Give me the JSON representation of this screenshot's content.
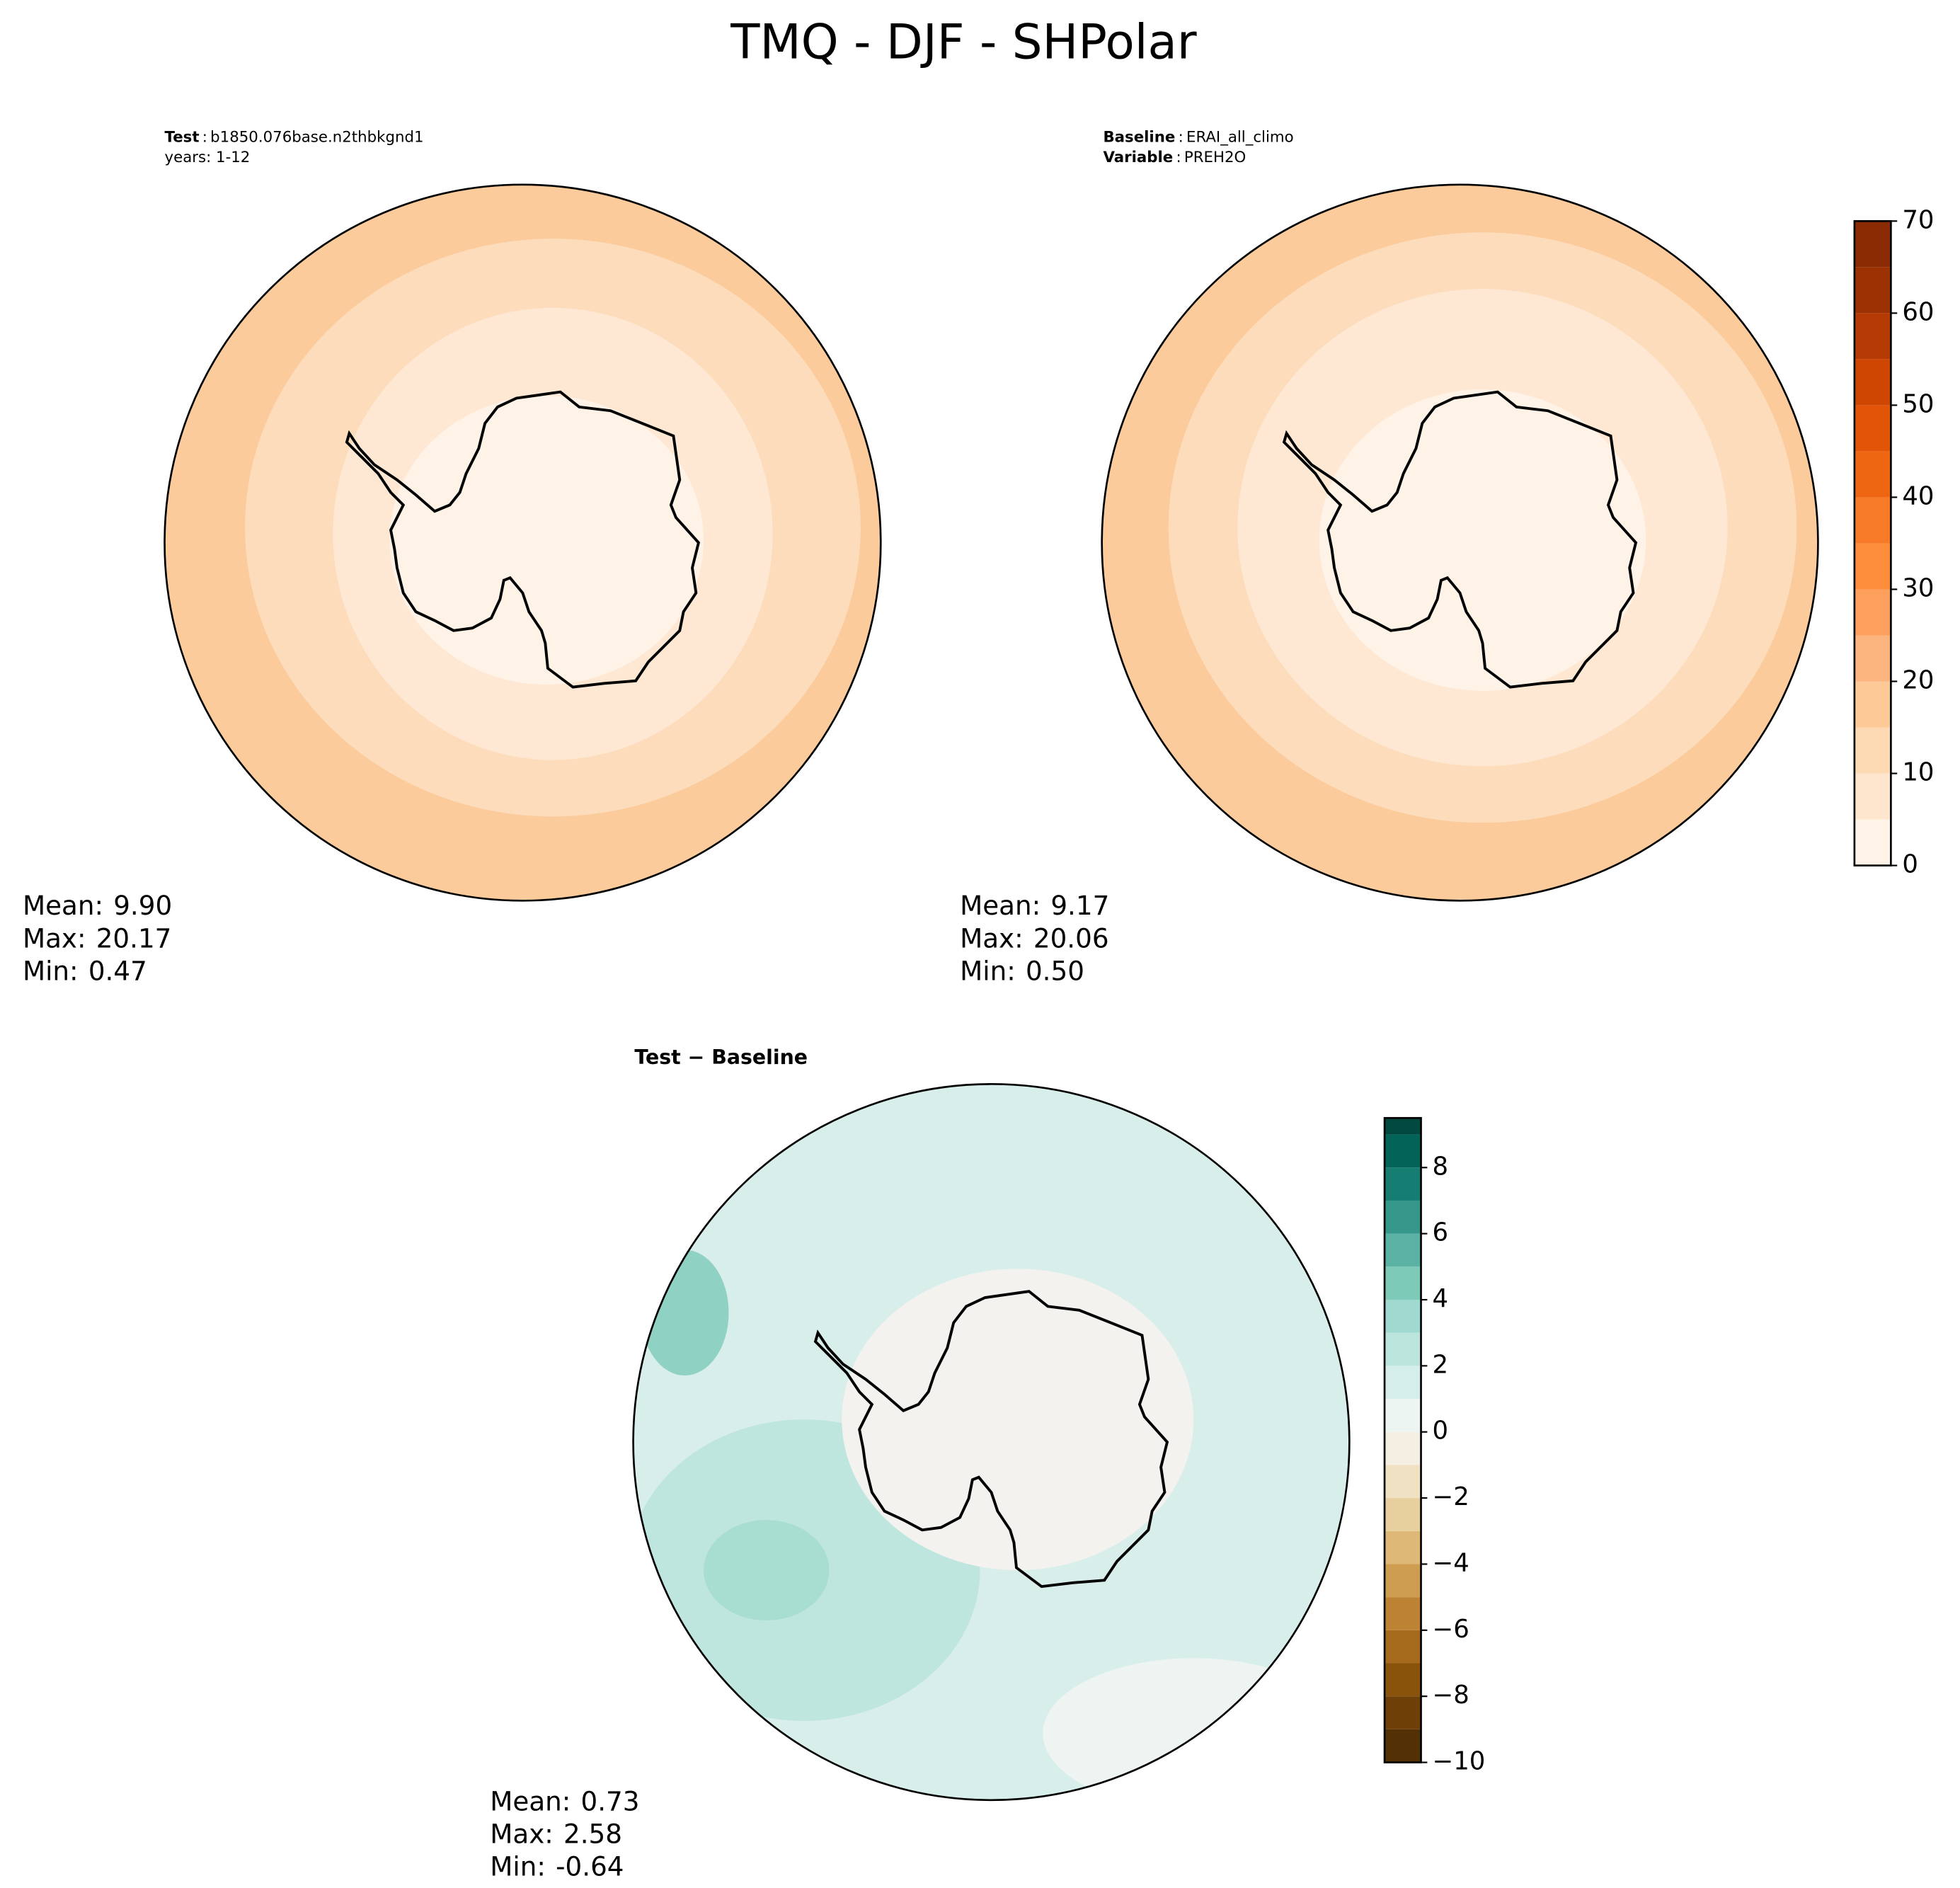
{
  "title": "TMQ - DJF - SHPolar",
  "panels": [
    {
      "lines": [
        {
          "label": "Test",
          "value": "b1850.076base.n2thbkgnd1"
        },
        {
          "text": "years: 1-12"
        }
      ],
      "stats": [
        {
          "label": "Mean:",
          "value": "9.90"
        },
        {
          "label": "Max:",
          "value": "20.17"
        },
        {
          "label": "Min:",
          "value": "0.47"
        }
      ]
    },
    {
      "lines": [
        {
          "label": "Baseline",
          "value": "ERAI_all_climo"
        },
        {
          "label": "Variable",
          "value": "PREH2O"
        }
      ],
      "stats": [
        {
          "label": "Mean:",
          "value": "9.17"
        },
        {
          "label": "Max:",
          "value": "20.06"
        },
        {
          "label": "Min:",
          "value": "0.50"
        }
      ]
    },
    {
      "title": "Test − Baseline",
      "stats": [
        {
          "label": "Mean:",
          "value": "0.73"
        },
        {
          "label": "Max:",
          "value": "2.58"
        },
        {
          "label": "Min:",
          "value": "-0.64"
        }
      ]
    }
  ],
  "colorbars": [
    {
      "ylim": [
        0,
        70
      ],
      "yticks": [
        0,
        10,
        20,
        30,
        40,
        50,
        60,
        70
      ],
      "levels": [
        0,
        5,
        10,
        15,
        20,
        25,
        30,
        35,
        40,
        45,
        50,
        55,
        60,
        65,
        70
      ],
      "colors": [
        "#fff2e6",
        "#fee6ce",
        "#fdd9b4",
        "#fdc997",
        "#fdb57f",
        "#fda05e",
        "#fd8c3b",
        "#f77a28",
        "#ef6612",
        "#e25508",
        "#cf4603",
        "#b53a03",
        "#9c3103",
        "#8a2b04"
      ]
    },
    {
      "ylim": [
        -10,
        9.5
      ],
      "yticks": [
        {
          "value": -10,
          "label": "−10"
        },
        {
          "value": -8,
          "label": "−8"
        },
        {
          "value": -6,
          "label": "−6"
        },
        {
          "value": -4,
          "label": "−4"
        },
        {
          "value": -2,
          "label": "−2"
        },
        0,
        2,
        4,
        6,
        8
      ],
      "levels": [
        -10,
        -9,
        -8,
        -7,
        -6,
        -5,
        -4,
        -3,
        -2,
        -1,
        0,
        1,
        2,
        3,
        4,
        5,
        6,
        7,
        8,
        9,
        9.5
      ],
      "colors": [
        "#543005",
        "#6e4008",
        "#8a530c",
        "#a66a1c",
        "#bd8233",
        "#cf9d52",
        "#ddb877",
        "#e8cf9e",
        "#f0e1c2",
        "#f4efe2",
        "#edf5f3",
        "#d6eeea",
        "#bce5dd",
        "#9fd9cf",
        "#7ecab9",
        "#5ab2a4",
        "#36978b",
        "#167d72",
        "#026459",
        "#01493f"
      ]
    }
  ]
}
